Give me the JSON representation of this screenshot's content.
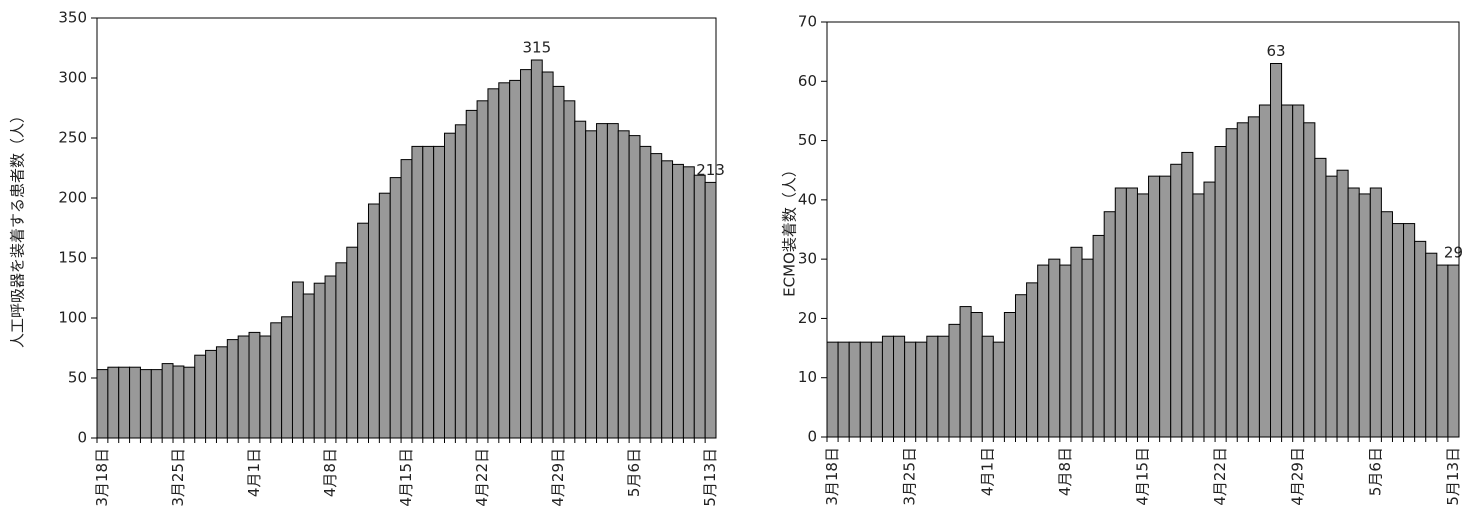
{
  "chart_data": [
    {
      "type": "bar",
      "y_label": "人工呼吸器を装着する患者数（人）",
      "color": "#999999",
      "categories": [
        "3月18日",
        null,
        null,
        null,
        null,
        null,
        null,
        "3月25日",
        null,
        null,
        null,
        null,
        null,
        null,
        "4月1日",
        null,
        null,
        null,
        null,
        null,
        null,
        "4月8日",
        null,
        null,
        null,
        null,
        null,
        null,
        "4月15日",
        null,
        null,
        null,
        null,
        null,
        null,
        "4月22日",
        null,
        null,
        null,
        null,
        null,
        null,
        "4月29日",
        null,
        null,
        null,
        null,
        null,
        null,
        "5月6日",
        null,
        null,
        null,
        null,
        null,
        null,
        "5月13日"
      ],
      "values": [
        57,
        59,
        59,
        59,
        57,
        57,
        62,
        60,
        59,
        69,
        73,
        76,
        82,
        85,
        88,
        85,
        96,
        101,
        130,
        120,
        129,
        135,
        146,
        159,
        179,
        195,
        204,
        217,
        232,
        243,
        243,
        243,
        254,
        261,
        273,
        281,
        291,
        296,
        298,
        307,
        315,
        305,
        293,
        281,
        264,
        256,
        262,
        262,
        256,
        252,
        243,
        237,
        231,
        228,
        226,
        219,
        213
      ],
      "value_labels": [
        null,
        null,
        null,
        null,
        null,
        null,
        null,
        null,
        null,
        null,
        null,
        null,
        null,
        null,
        null,
        null,
        null,
        null,
        null,
        null,
        null,
        null,
        null,
        null,
        null,
        null,
        null,
        null,
        null,
        null,
        null,
        null,
        null,
        null,
        null,
        null,
        null,
        null,
        null,
        null,
        "315",
        null,
        null,
        null,
        null,
        null,
        null,
        null,
        null,
        null,
        null,
        null,
        null,
        null,
        null,
        null,
        "213"
      ],
      "ylim": [
        0,
        350
      ],
      "yticks": [
        0,
        50,
        100,
        150,
        200,
        250,
        300,
        350
      ]
    },
    {
      "type": "bar",
      "y_label": "ECMO装着数（人）",
      "color": "#999999",
      "categories": [
        "3月18日",
        null,
        null,
        null,
        null,
        null,
        null,
        "3月25日",
        null,
        null,
        null,
        null,
        null,
        null,
        "4月1日",
        null,
        null,
        null,
        null,
        null,
        null,
        "4月8日",
        null,
        null,
        null,
        null,
        null,
        null,
        "4月15日",
        null,
        null,
        null,
        null,
        null,
        null,
        "4月22日",
        null,
        null,
        null,
        null,
        null,
        null,
        "4月29日",
        null,
        null,
        null,
        null,
        null,
        null,
        "5月6日",
        null,
        null,
        null,
        null,
        null,
        null,
        "5月13日"
      ],
      "values": [
        16,
        16,
        16,
        16,
        16,
        17,
        17,
        16,
        16,
        17,
        17,
        19,
        22,
        21,
        17,
        16,
        21,
        24,
        26,
        29,
        30,
        29,
        32,
        30,
        34,
        38,
        42,
        42,
        41,
        44,
        44,
        46,
        48,
        41,
        43,
        49,
        52,
        53,
        54,
        56,
        63,
        56,
        56,
        53,
        47,
        44,
        45,
        42,
        41,
        42,
        38,
        36,
        36,
        33,
        31,
        29,
        29
      ],
      "value_labels": [
        null,
        null,
        null,
        null,
        null,
        null,
        null,
        null,
        null,
        null,
        null,
        null,
        null,
        null,
        null,
        null,
        null,
        null,
        null,
        null,
        null,
        null,
        null,
        null,
        null,
        null,
        null,
        null,
        null,
        null,
        null,
        null,
        null,
        null,
        null,
        null,
        null,
        null,
        null,
        null,
        "63",
        null,
        null,
        null,
        null,
        null,
        null,
        null,
        null,
        null,
        null,
        null,
        null,
        null,
        null,
        null,
        "29"
      ],
      "ylim": [
        0,
        70
      ],
      "yticks": [
        0,
        10,
        20,
        30,
        40,
        50,
        60,
        70
      ]
    }
  ]
}
